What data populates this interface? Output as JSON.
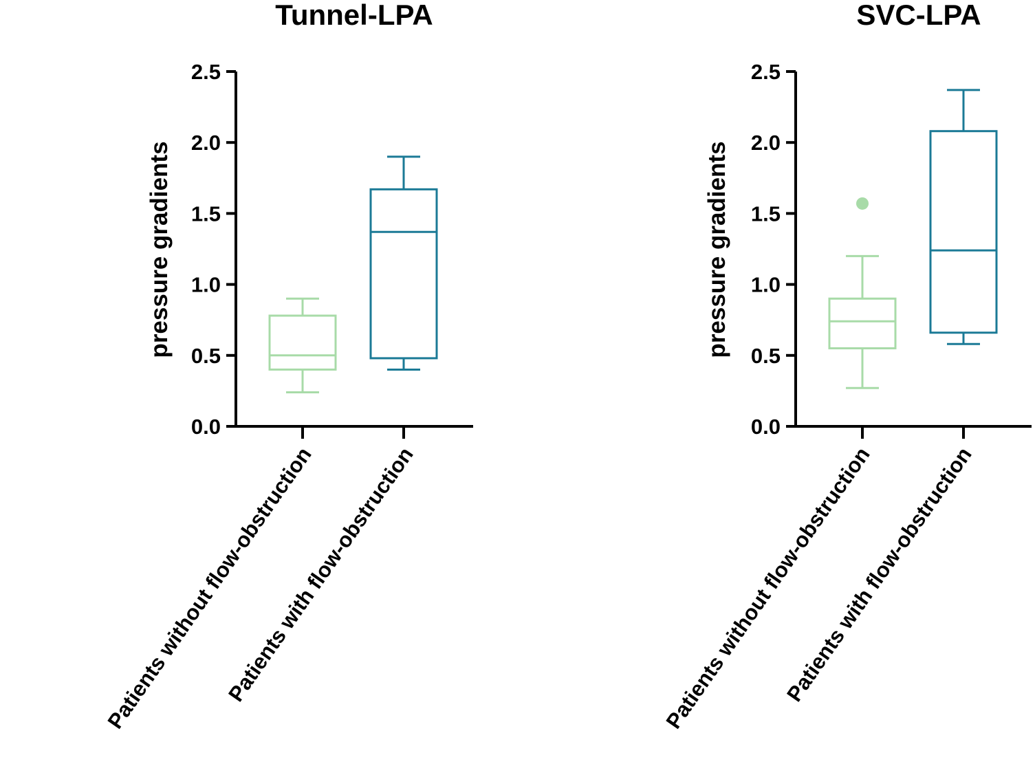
{
  "colors": {
    "without": "#a8dba8",
    "with": "#1b7a96",
    "axis": "#000000"
  },
  "chart_data": [
    {
      "type": "box",
      "title": "Tunnel-LPA",
      "ylabel": "pressure gradients",
      "ylim": [
        0,
        2.5
      ],
      "yticks": [
        "0.0",
        "0.5",
        "1.0",
        "1.5",
        "2.0",
        "2.5"
      ],
      "categories": [
        "Patients without flow-obstruction",
        "Patients with flow-obstruction"
      ],
      "boxes": [
        {
          "min": 0.24,
          "q1": 0.4,
          "median": 0.5,
          "q3": 0.78,
          "max": 0.9,
          "outliers": []
        },
        {
          "min": 0.4,
          "q1": 0.48,
          "median": 1.37,
          "q3": 1.67,
          "max": 1.9,
          "outliers": []
        }
      ]
    },
    {
      "type": "box",
      "title": "SVC-LPA",
      "ylabel": "pressure gradients",
      "ylim": [
        0,
        2.5
      ],
      "yticks": [
        "0.0",
        "0.5",
        "1.0",
        "1.5",
        "2.0",
        "2.5"
      ],
      "categories": [
        "Patients without flow-obstruction",
        "Patients with flow-obstruction"
      ],
      "boxes": [
        {
          "min": 0.27,
          "q1": 0.55,
          "median": 0.74,
          "q3": 0.9,
          "max": 1.2,
          "outliers": [
            1.57
          ]
        },
        {
          "min": 0.58,
          "q1": 0.66,
          "median": 1.24,
          "q3": 2.08,
          "max": 2.37,
          "outliers": []
        }
      ]
    }
  ]
}
